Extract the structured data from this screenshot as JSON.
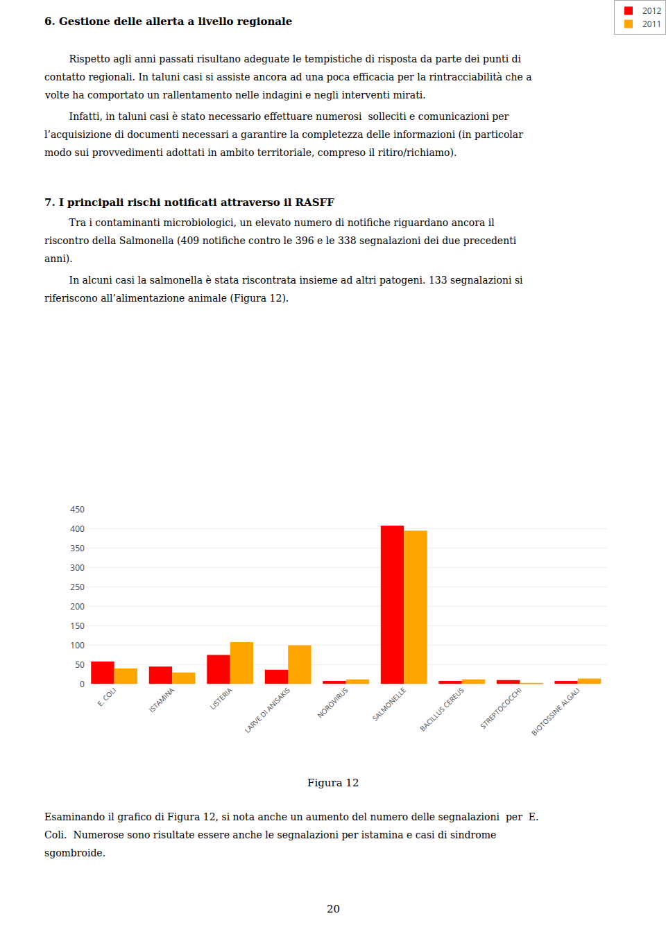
{
  "chart_data": {
    "type": "bar",
    "categories": [
      "E. COLI",
      "ISTAMINA",
      "LISTERIA",
      "LARVE DI ANISAKIS",
      "NOROVIRUS",
      "SALMONELLE",
      "BACILLUS CEREUS",
      "STREPTOCOCCHI",
      "BIOTOSSINE ALGALI"
    ],
    "series": [
      {
        "name": "2012",
        "color": "#FF0000",
        "values": [
          58,
          45,
          75,
          37,
          8,
          409,
          8,
          10,
          8
        ]
      },
      {
        "name": "2011",
        "color": "#FFA500",
        "values": [
          40,
          30,
          108,
          100,
          12,
          396,
          12,
          3,
          14
        ]
      }
    ],
    "ylim": [
      0,
      450
    ],
    "yticks": [
      0,
      50,
      100,
      150,
      200,
      250,
      300,
      350,
      400,
      450
    ],
    "grid": true,
    "legend": "upper right",
    "annotations": [
      "6. Gestione delle allerta a livello regionale",
      "        Rispetto agli anni passati risultano adeguate le tempistiche di risposta da parte dei punti di",
      "contatto regionali. In taluni casi si assiste ancora ad una poca efficacia per la rintracciabilità che a",
      "volte ha comportato un rallentamento nelle indagini e negli interventi mirati.",
      "        Infatti, in taluni casi è stato necessario effettuare numerosi  solleciti e comunicazioni per",
      "l’acquisizione di documenti necessari a garantire la completezza delle informazioni (in particolar",
      "modo sui provvedimenti adottati in ambito territoriale, compreso il ritiro/richiamo).",
      "7. I principali rischi notificati attraverso il RASFF",
      "        Tra i contaminanti microbiologici, un elevato numero di notifiche riguardano ancora il",
      "riscontro della Salmonella (409 notifiche contro le 396 e le 338 segnalazioni dei due precedenti",
      "anni).",
      "        In alcuni casi la salmonella è stata riscontrata insieme ad altri patogeni. 133 segnalazioni si",
      "riferiscono all’alimentazione animale (Figura 12).",
      "Figura 12",
      "Esaminando il grafico di Figura 12, si nota anche un aumento del numero delle segnalazioni  per  E.",
      "Coli.  Numerose sono risultate essere anche le segnalazioni per istamina e casi di sindrome",
      "sgombroide.",
      "20"
    ]
  }
}
